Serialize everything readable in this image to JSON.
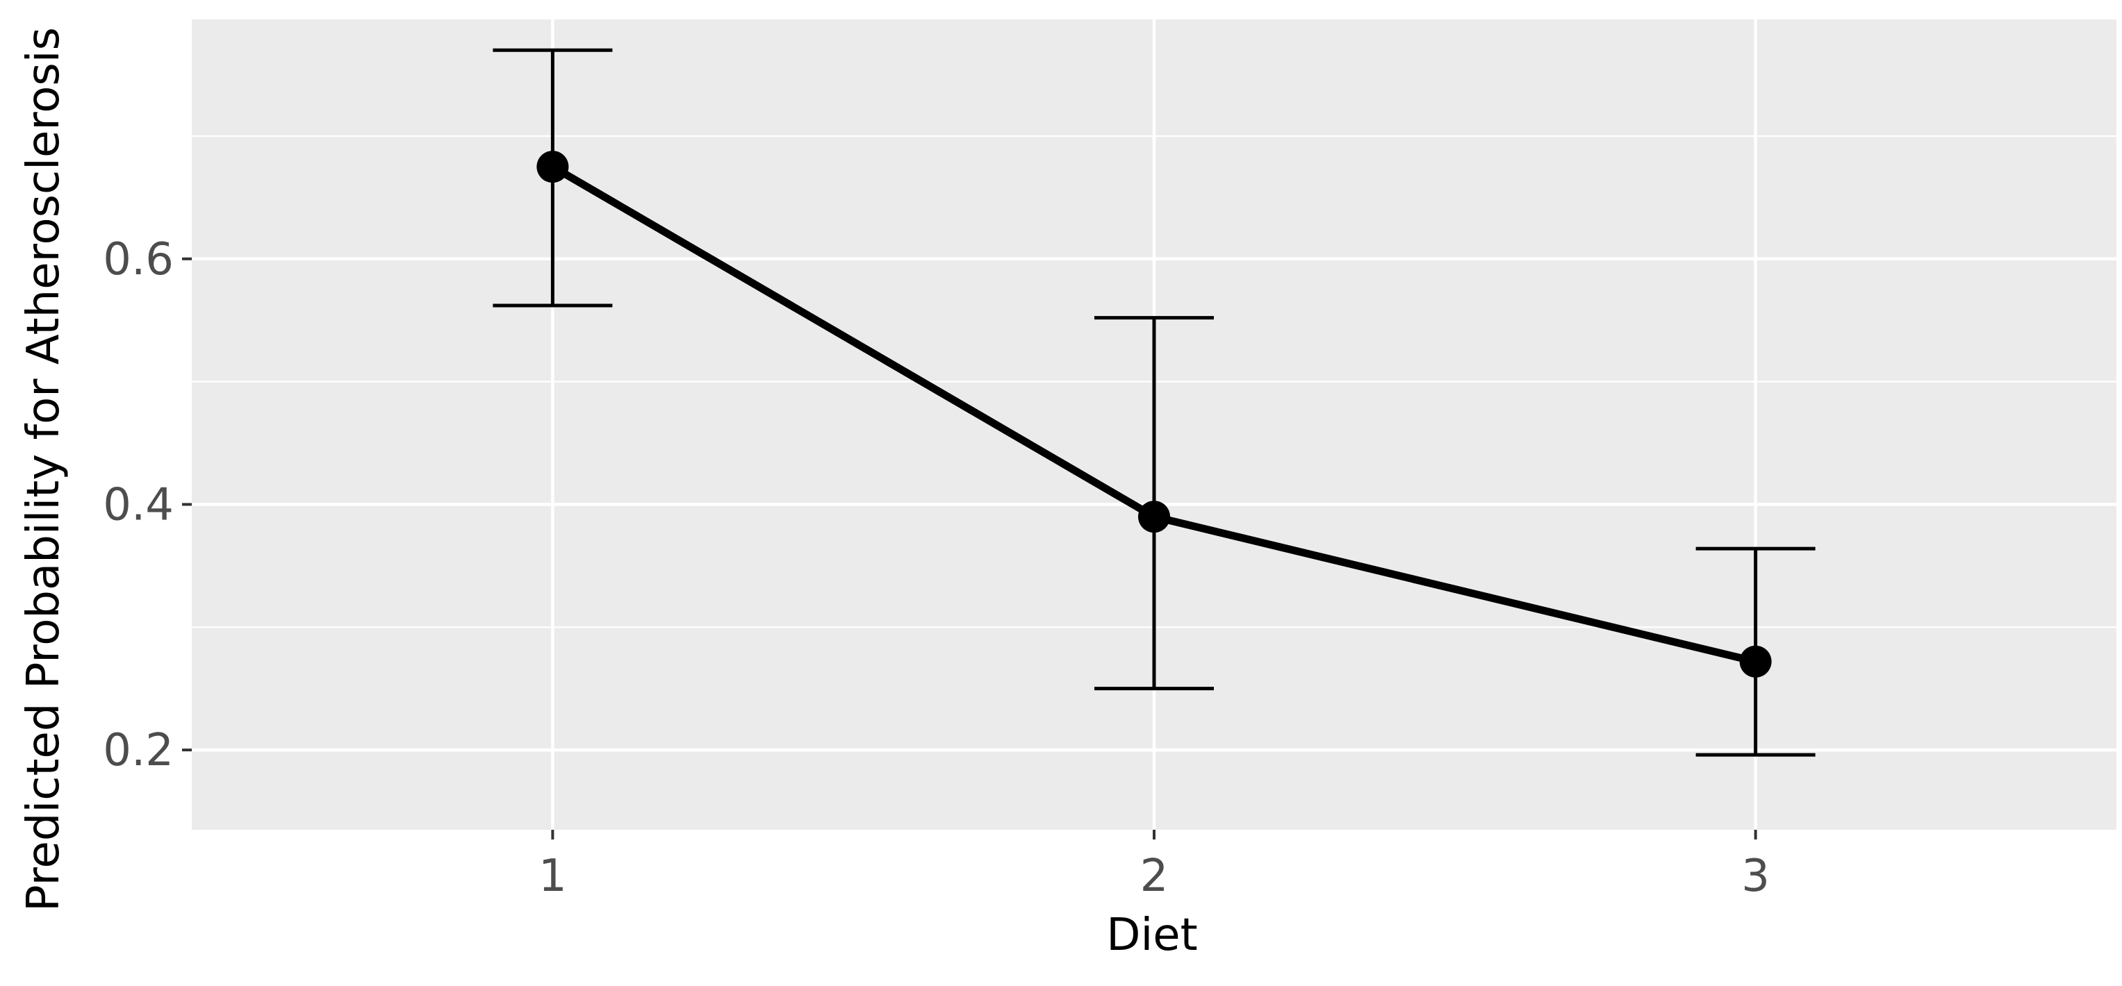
{
  "chart_data": {
    "type": "line",
    "title": "",
    "xlabel": "Diet",
    "ylabel": "Predicted Probability for Atherosclerosis",
    "categories": [
      "1",
      "2",
      "3"
    ],
    "x_ticks": [
      "1",
      "2",
      "3"
    ],
    "y_ticks": [
      0.2,
      0.4,
      0.6
    ],
    "y_tick_labels": [
      "0.2",
      "0.4",
      "0.6"
    ],
    "ylim": [
      0.135,
      0.795
    ],
    "grid": true,
    "legend": "none",
    "series": [
      {
        "values": [
          0.675,
          0.39,
          0.272
        ],
        "lower": [
          0.562,
          0.25,
          0.196
        ],
        "upper": [
          0.77,
          0.552,
          0.364
        ],
        "color": "#000000"
      }
    ]
  }
}
